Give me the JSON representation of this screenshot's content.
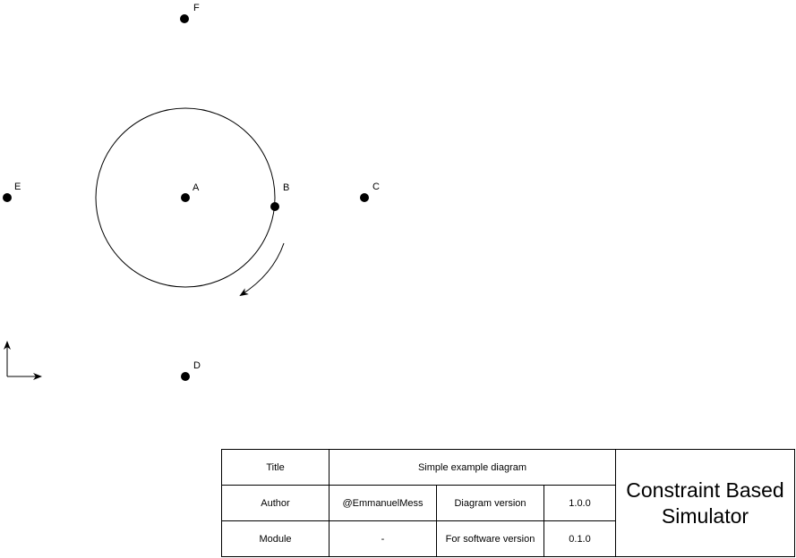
{
  "diagram": {
    "points": [
      "A",
      "B",
      "C",
      "D",
      "E",
      "F"
    ]
  },
  "title_block": {
    "title_label": "Title",
    "title_value": "Simple example diagram",
    "author_label": "Author",
    "author_value": "@EmmanuelMess",
    "diagram_version_label": "Diagram version",
    "diagram_version_value": "1.0.0",
    "module_label": "Module",
    "module_value": "-",
    "software_version_label": "For software version",
    "software_version_value": "0.1.0",
    "project_name_line1": "Constraint Based",
    "project_name_line2": "Simulator"
  },
  "colors": {
    "ink": "#000000",
    "background": "#ffffff"
  }
}
